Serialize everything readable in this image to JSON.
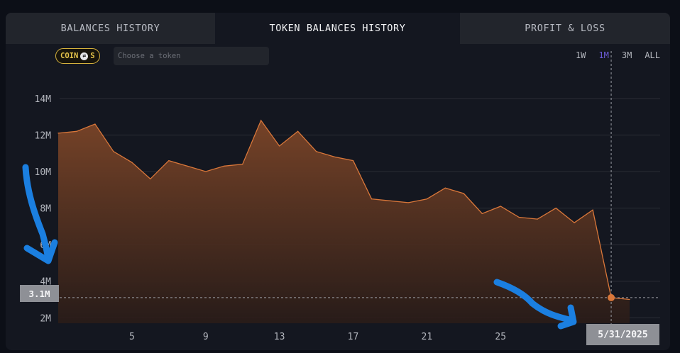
{
  "tabs": [
    {
      "label": "BALANCES HISTORY"
    },
    {
      "label": "TOKEN BALANCES HISTORY"
    },
    {
      "label": "PROFIT & LOSS"
    }
  ],
  "coin_badge": {
    "label_left": "COIN",
    "icon_glyph": "⇄",
    "label_right": "S"
  },
  "token_search": {
    "placeholder": "Choose a token",
    "value": ""
  },
  "time_ranges": [
    {
      "label": "1W"
    },
    {
      "label": "1M",
      "active": true
    },
    {
      "label": "3M"
    },
    {
      "label": "ALL"
    }
  ],
  "crosshair": {
    "y_label": "3.1M",
    "x_label": "5/31/2025"
  },
  "colors": {
    "accent_range": "#6b5bd8",
    "line": "#d9773a",
    "area_top": "#7b4528",
    "badge": "#e3c24a",
    "annotation": "#1b7fe0"
  },
  "chart_data": {
    "type": "area",
    "x": [
      1,
      2,
      3,
      4,
      5,
      6,
      7,
      8,
      9,
      10,
      11,
      12,
      13,
      14,
      15,
      16,
      17,
      18,
      19,
      20,
      21,
      22,
      23,
      24,
      25,
      26,
      27,
      28,
      29,
      30,
      31,
      32
    ],
    "values": [
      12.1,
      12.2,
      12.6,
      11.1,
      10.5,
      9.6,
      10.6,
      10.3,
      10.0,
      10.3,
      10.4,
      12.8,
      11.4,
      12.2,
      11.1,
      10.8,
      10.6,
      8.5,
      8.4,
      8.3,
      8.5,
      9.1,
      8.8,
      7.7,
      8.1,
      7.5,
      7.4,
      8.0,
      7.2,
      7.9,
      3.1,
      3.0
    ],
    "y_unit": "M",
    "x_ticks": [
      "5",
      "9",
      "13",
      "17",
      "21",
      "25"
    ],
    "y_ticks": [
      "2M",
      "4M",
      "6M",
      "8M",
      "10M",
      "12M",
      "14M"
    ],
    "ylim": [
      1.7,
      15.2
    ],
    "xlim": [
      1,
      33
    ],
    "grid": "horizontal",
    "hover_x": 31
  }
}
